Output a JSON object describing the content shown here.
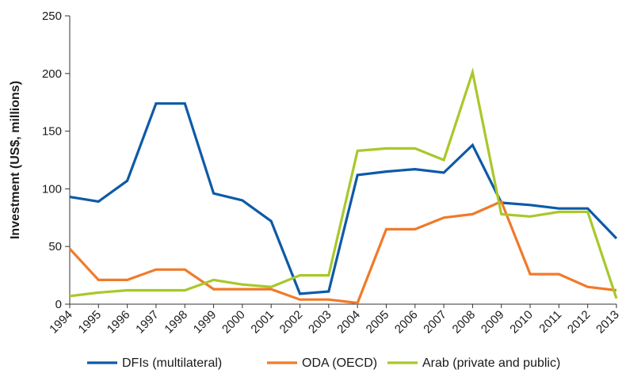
{
  "chart_data": {
    "type": "line",
    "title": "",
    "xlabel": "",
    "ylabel": "Investment (US$, millions)",
    "ylim": [
      0,
      250
    ],
    "yticks": [
      0,
      50,
      100,
      150,
      200,
      250
    ],
    "categories": [
      "1994",
      "1995",
      "1996",
      "1997",
      "1998",
      "1999",
      "2000",
      "2001",
      "2002",
      "2003",
      "2004",
      "2005",
      "2006",
      "2007",
      "2008",
      "2009",
      "2010",
      "2011",
      "2012",
      "2013"
    ],
    "grid": false,
    "legend_position": "bottom",
    "series": [
      {
        "name": "DFIs (multilateral)",
        "color": "#0d5aa7",
        "values": [
          93,
          89,
          107,
          174,
          174,
          96,
          90,
          72,
          9,
          11,
          112,
          115,
          117,
          114,
          138,
          88,
          86,
          83,
          83,
          57
        ]
      },
      {
        "name": "ODA (OECD)",
        "color": "#f07a2a",
        "values": [
          48,
          21,
          21,
          30,
          30,
          13,
          13,
          13,
          4,
          4,
          1,
          65,
          65,
          75,
          78,
          89,
          26,
          26,
          15,
          12
        ]
      },
      {
        "name": "Arab (private and public)",
        "color": "#a8c82a",
        "values": [
          7,
          10,
          12,
          12,
          12,
          21,
          17,
          15,
          25,
          25,
          133,
          135,
          135,
          125,
          201,
          78,
          76,
          80,
          80,
          5
        ]
      }
    ]
  }
}
